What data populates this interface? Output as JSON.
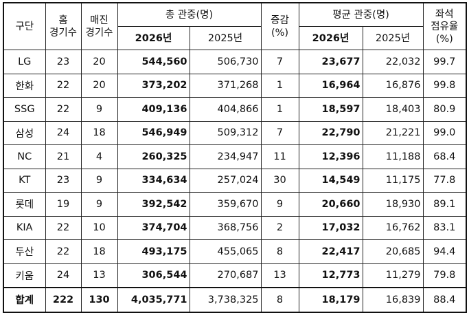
{
  "headers": {
    "team": "구단",
    "home_games": "홈\n경기수",
    "sold_out_games": "매진\n경기수",
    "total_attendance": "총 관중(명)",
    "change": "증감\n(%)",
    "avg_attendance": "평균 관중(명)",
    "occupancy": "좌석\n점유율\n(%)",
    "year_2026": "2026년",
    "year_2025": "2025년",
    "year_2026b": "2026년",
    "year_2025b": "2025년"
  },
  "rows": [
    {
      "team": "LG",
      "home": "23",
      "sold": "20",
      "total26": "544,560",
      "total25": "506,730",
      "change": "7",
      "avg26": "23,677",
      "avg25": "22,032",
      "occ": "99.7"
    },
    {
      "team": "한화",
      "home": "22",
      "sold": "20",
      "total26": "373,202",
      "total25": "371,268",
      "change": "1",
      "avg26": "16,964",
      "avg25": "16,876",
      "occ": "99.8"
    },
    {
      "team": "SSG",
      "home": "22",
      "sold": "9",
      "total26": "409,136",
      "total25": "404,866",
      "change": "1",
      "avg26": "18,597",
      "avg25": "18,403",
      "occ": "80.9"
    },
    {
      "team": "삼성",
      "home": "24",
      "sold": "18",
      "total26": "546,949",
      "total25": "509,312",
      "change": "7",
      "avg26": "22,790",
      "avg25": "21,221",
      "occ": "99.0"
    },
    {
      "team": "NC",
      "home": "21",
      "sold": "4",
      "total26": "260,325",
      "total25": "234,947",
      "change": "11",
      "avg26": "12,396",
      "avg25": "11,188",
      "occ": "68.4"
    },
    {
      "team": "KT",
      "home": "23",
      "sold": "9",
      "total26": "334,634",
      "total25": "257,024",
      "change": "30",
      "avg26": "14,549",
      "avg25": "11,175",
      "occ": "77.8"
    },
    {
      "team": "롯데",
      "home": "19",
      "sold": "9",
      "total26": "392,542",
      "total25": "359,670",
      "change": "9",
      "avg26": "20,660",
      "avg25": "18,930",
      "occ": "89.1"
    },
    {
      "team": "KIA",
      "home": "22",
      "sold": "10",
      "total26": "374,704",
      "total25": "368,756",
      "change": "2",
      "avg26": "17,032",
      "avg25": "16,762",
      "occ": "83.1"
    },
    {
      "team": "두산",
      "home": "22",
      "sold": "18",
      "total26": "493,175",
      "total25": "455,065",
      "change": "8",
      "avg26": "22,417",
      "avg25": "20,685",
      "occ": "94.4"
    },
    {
      "team": "키움",
      "home": "24",
      "sold": "13",
      "total26": "306,544",
      "total25": "270,687",
      "change": "13",
      "avg26": "12,773",
      "avg25": "11,279",
      "occ": "79.8"
    }
  ],
  "total": {
    "team": "합계",
    "home": "222",
    "sold": "130",
    "total26": "4,035,771",
    "total25": "3,738,325",
    "change": "8",
    "avg26": "18,179",
    "avg25": "16,839",
    "occ": "88.4"
  }
}
